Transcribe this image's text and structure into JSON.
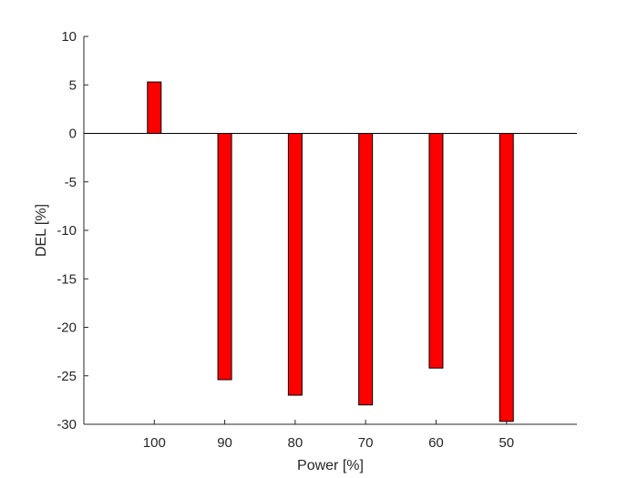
{
  "chart_data": {
    "type": "bar",
    "categories": [
      "100",
      "90",
      "80",
      "70",
      "60",
      "50"
    ],
    "values": [
      5.3,
      -25.4,
      -27.0,
      -28.0,
      -24.2,
      -29.7
    ],
    "xlabel": "Power [%]",
    "ylabel": "DEL [%]",
    "ylim": [
      -30,
      10
    ],
    "yticks": [
      10,
      5,
      0,
      -5,
      -10,
      -15,
      -20,
      -25,
      -30
    ],
    "grid": false,
    "legend": "none",
    "bar_color": "#ff0000",
    "bar_edge_color": "#000000",
    "baseline": 0
  }
}
